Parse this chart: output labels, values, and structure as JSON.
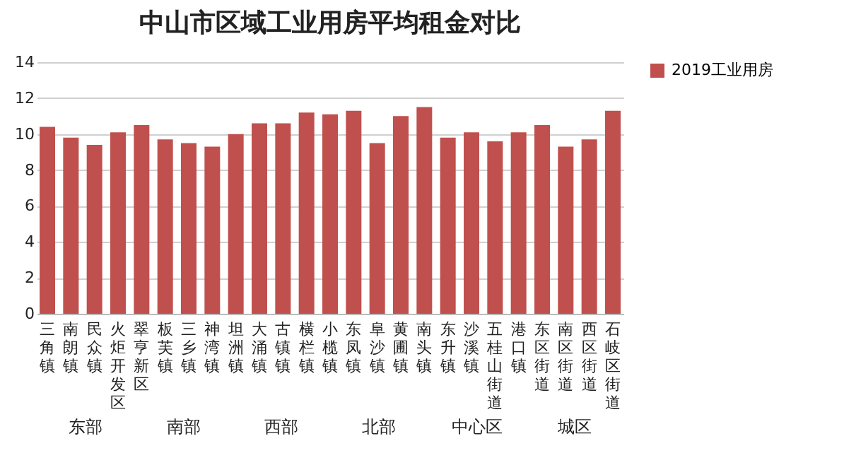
{
  "chart_data": {
    "type": "bar",
    "title": "中山市区域工业用房平均租金对比",
    "categories": [
      "三角镇",
      "南朗镇",
      "民众镇",
      "火炬开发区",
      "翠亨新区",
      "板芙镇",
      "三乡镇",
      "神湾镇",
      "坦洲镇",
      "大涌镇",
      "古镇镇",
      "横栏镇",
      "小榄镇",
      "东凤镇",
      "阜沙镇",
      "黄圃镇",
      "南头镇",
      "东升镇",
      "沙溪镇",
      "五桂山街道",
      "港口镇",
      "东区街道",
      "南区街道",
      "西区街道",
      "石岐区街道"
    ],
    "series": [
      {
        "name": "2019工业用房",
        "color": "#c0504d",
        "values": [
          10.4,
          9.8,
          9.4,
          10.1,
          10.5,
          9.7,
          9.5,
          9.3,
          10.0,
          10.6,
          10.6,
          11.2,
          11.1,
          11.3,
          9.5,
          11.0,
          11.5,
          9.8,
          10.1,
          9.6,
          10.1,
          10.5,
          9.3,
          9.7,
          11.3
        ]
      }
    ],
    "ylim": [
      0,
      14
    ],
    "yticks": [
      0,
      2,
      4,
      6,
      8,
      10,
      12,
      14
    ],
    "grid": "y",
    "legend": "right",
    "annotations": [
      "东部",
      "南部",
      "西部",
      "北部",
      "中心区",
      "城区"
    ]
  }
}
